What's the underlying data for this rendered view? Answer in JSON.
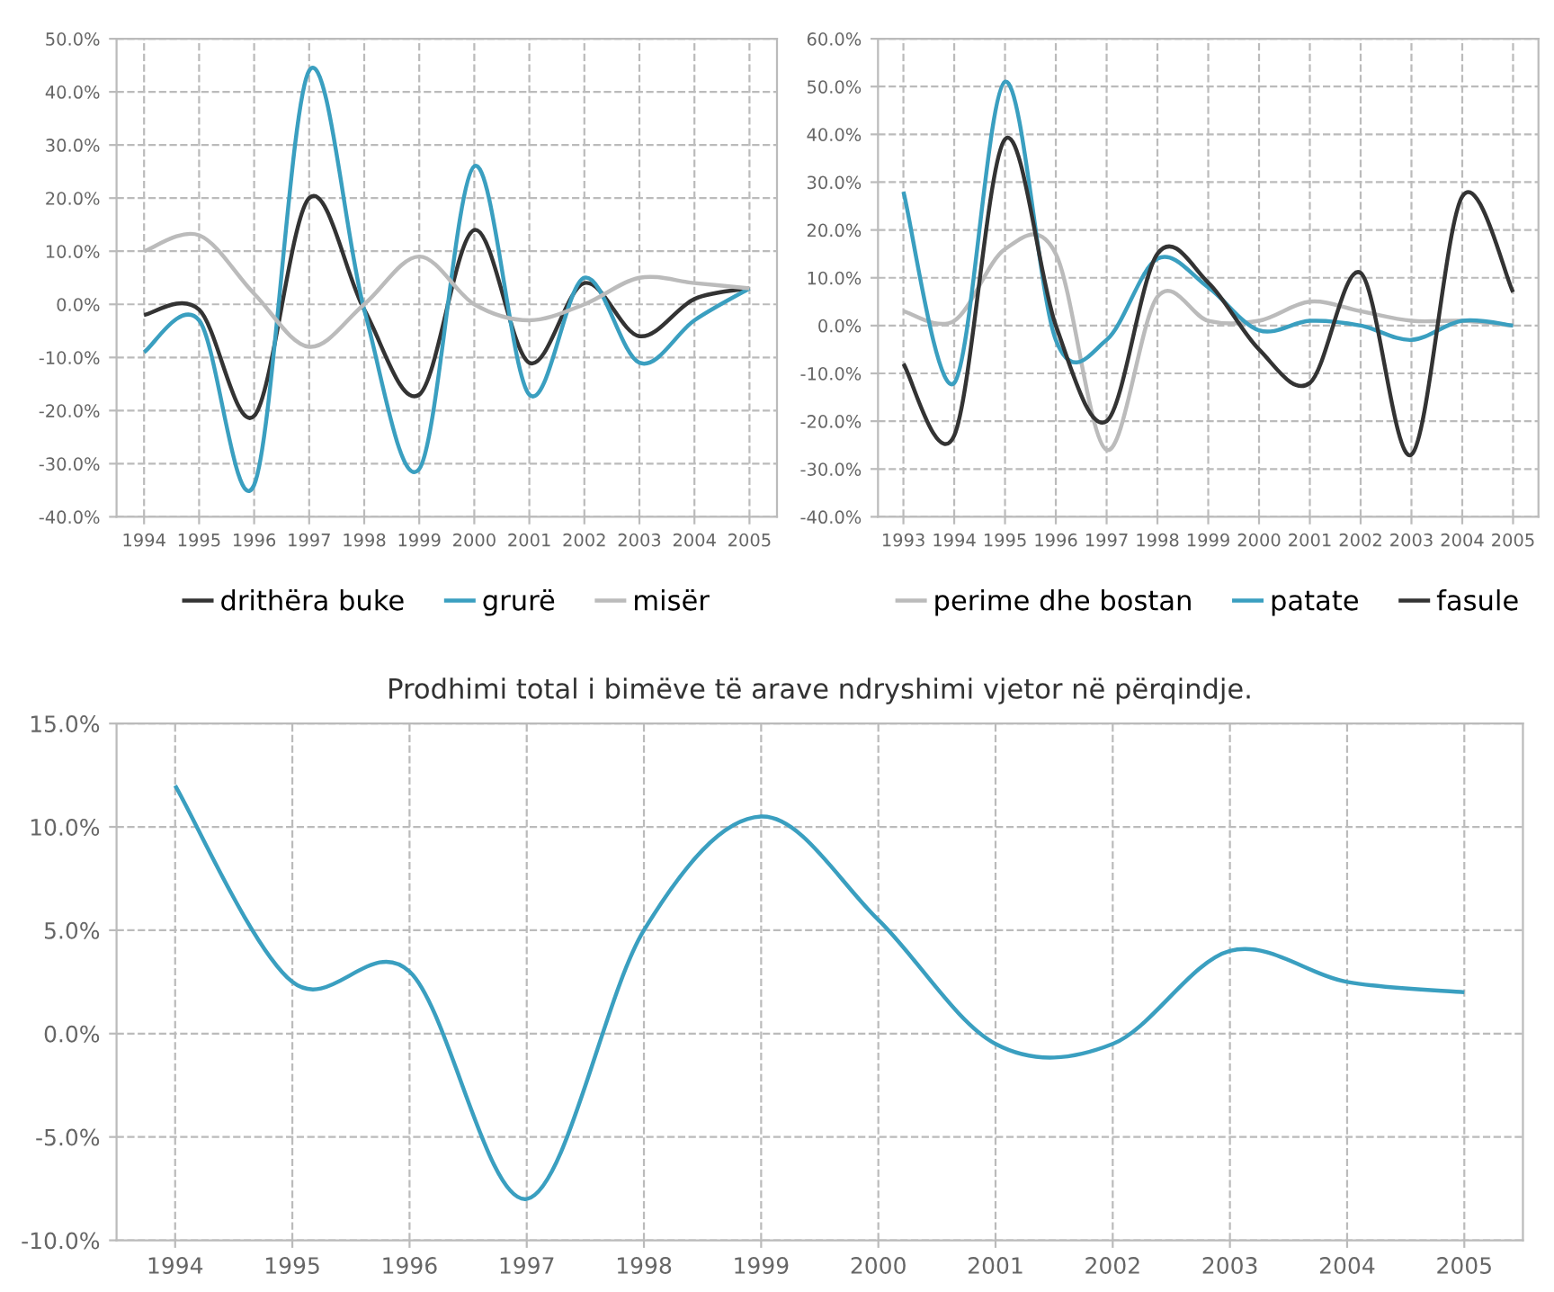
{
  "chart_data": [
    {
      "type": "line",
      "categories": [
        "1994",
        "1995",
        "1996",
        "1997",
        "1998",
        "1999",
        "2000",
        "2001",
        "2002",
        "2003",
        "2004",
        "2005"
      ],
      "series": [
        {
          "name": "drithëra buke",
          "color": "#333333",
          "values": [
            -2,
            -1,
            -21,
            20,
            -1,
            -17,
            14,
            -11,
            4,
            -6,
            1,
            3
          ]
        },
        {
          "name": "grurë",
          "color": "#3a9fc0",
          "values": [
            -9,
            -3,
            -34,
            44,
            -1,
            -31,
            26,
            -17,
            5,
            -11,
            -3,
            3
          ]
        },
        {
          "name": "misër",
          "color": "#bbbbbb",
          "values": [
            10,
            13,
            2,
            -8,
            0,
            9,
            0,
            -3,
            0,
            5,
            4,
            3
          ]
        }
      ],
      "ylim": [
        -40,
        50
      ],
      "yticks": [
        {
          "value": -40,
          "label": "-40.0%"
        },
        {
          "value": -30,
          "label": "-30.0%"
        },
        {
          "value": -20,
          "label": "-20.0%"
        },
        {
          "value": -10,
          "label": "-10.0%"
        },
        {
          "value": 0,
          "label": "0.0%"
        },
        {
          "value": 10,
          "label": "10.0%"
        },
        {
          "value": 20,
          "label": "20.0%"
        },
        {
          "value": 30,
          "label": "30.0%"
        },
        {
          "value": 40,
          "label": "40.0%"
        },
        {
          "value": 50,
          "label": "50.0%"
        }
      ],
      "grid": true,
      "legend": "bottom",
      "marker": "none",
      "line_style": "solid"
    },
    {
      "type": "line",
      "categories": [
        "1993",
        "1994",
        "1995",
        "1996",
        "1997",
        "1998",
        "1999",
        "2000",
        "2001",
        "2002",
        "2003",
        "2004",
        "2005"
      ],
      "series": [
        {
          "name": "perime dhe bostan",
          "color": "#bbbbbb",
          "values": [
            3,
            1,
            16,
            15,
            -26,
            6,
            1,
            1,
            5,
            3,
            1,
            1,
            0
          ]
        },
        {
          "name": "patate",
          "color": "#3a9fc0",
          "values": [
            28,
            -12,
            51,
            -3,
            -3,
            14,
            8,
            -1,
            1,
            0,
            -3,
            1,
            0
          ]
        },
        {
          "name": "fasule",
          "color": "#333333",
          "values": [
            -8,
            -23,
            39,
            0,
            -20,
            15,
            9,
            -5,
            -12,
            11,
            -27,
            27,
            7
          ]
        }
      ],
      "ylim": [
        -40,
        60
      ],
      "yticks": [
        {
          "value": -40,
          "label": "-40.0%"
        },
        {
          "value": -30,
          "label": "-30.0%"
        },
        {
          "value": -20,
          "label": "-20.0%"
        },
        {
          "value": -10,
          "label": "-10.0%"
        },
        {
          "value": 0,
          "label": "0.0%"
        },
        {
          "value": 10,
          "label": "10.0%"
        },
        {
          "value": 20,
          "label": "20.0%"
        },
        {
          "value": 30,
          "label": "30.0%"
        },
        {
          "value": 40,
          "label": "40.0%"
        },
        {
          "value": 50,
          "label": "50.0%"
        },
        {
          "value": 60,
          "label": "60.0%"
        }
      ],
      "grid": true,
      "legend": "bottom",
      "marker": "none",
      "line_style": "solid"
    },
    {
      "type": "line",
      "title": "Prodhimi total i bimëve të arave ndryshimi vjetor në përqindje.",
      "categories": [
        "1994",
        "1995",
        "1996",
        "1997",
        "1998",
        "1999",
        "2000",
        "2001",
        "2002",
        "2003",
        "2004",
        "2005"
      ],
      "series": [
        {
          "color": "#3a9fc0",
          "values": [
            12,
            2.5,
            3,
            -8,
            5,
            10.5,
            5.5,
            -0.5,
            -0.5,
            4,
            2.5,
            2
          ]
        }
      ],
      "ylim": [
        -10,
        15
      ],
      "yticks": [
        {
          "value": -10,
          "label": "-10.0%"
        },
        {
          "value": -5,
          "label": "-5.0%"
        },
        {
          "value": 0,
          "label": "0.0%"
        },
        {
          "value": 5,
          "label": "5.0%"
        },
        {
          "value": 10,
          "label": "10.0%"
        },
        {
          "value": 15,
          "label": "15.0%"
        }
      ],
      "grid": true,
      "legend": false,
      "marker": "none",
      "line_style": "solid"
    }
  ]
}
